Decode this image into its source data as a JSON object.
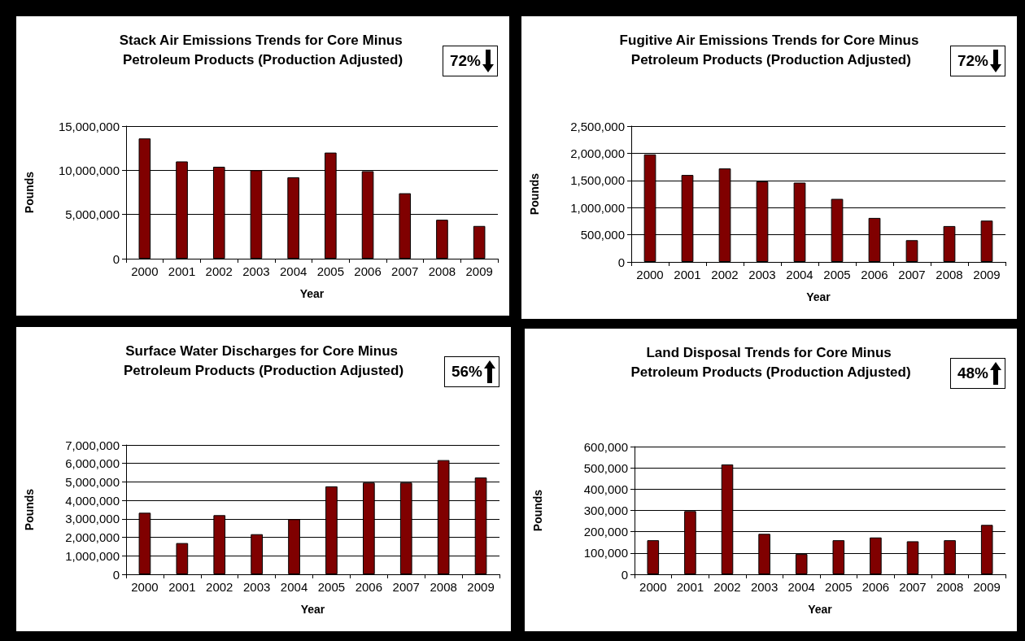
{
  "chart_data": [
    {
      "type": "bar",
      "title": "Stack Air Emissions Trends for Core Minus Petroleum Products (Production Adjusted)",
      "xlabel": "Year",
      "ylabel": "Pounds",
      "annotations": [
        "72%"
      ],
      "categories": [
        "2000",
        "2001",
        "2002",
        "2003",
        "2004",
        "2005",
        "2006",
        "2007",
        "2008",
        "2009"
      ],
      "values": [
        13600000,
        11000000,
        10400000,
        10000000,
        9200000,
        12000000,
        9900000,
        7400000,
        4400000,
        3700000
      ],
      "color": "#800000",
      "ylim": [
        0,
        15000000
      ],
      "yticks": [
        {
          "value": 0,
          "label": "0"
        },
        {
          "value": 5000000,
          "label": "5,000,000"
        },
        {
          "value": 10000000,
          "label": "10,000,000"
        },
        {
          "value": 15000000,
          "label": "15,000,000"
        }
      ],
      "grid": "y"
    },
    {
      "type": "bar",
      "title": "Fugitive Air Emissions Trends for Core Minus Petroleum Products (Production Adjusted)",
      "xlabel": "Year",
      "ylabel": "Pounds",
      "annotations": [
        "72%"
      ],
      "categories": [
        "2000",
        "2001",
        "2002",
        "2003",
        "2004",
        "2005",
        "2006",
        "2007",
        "2008",
        "2009"
      ],
      "values": [
        1980000,
        1600000,
        1720000,
        1480000,
        1460000,
        1160000,
        810000,
        400000,
        660000,
        760000
      ],
      "color": "#800000",
      "ylim": [
        0,
        2500000
      ],
      "yticks": [
        {
          "value": 0,
          "label": "0"
        },
        {
          "value": 500000,
          "label": "500,000"
        },
        {
          "value": 1000000,
          "label": "1,000,000"
        },
        {
          "value": 1500000,
          "label": "1,500,000"
        },
        {
          "value": 2000000,
          "label": "2,000,000"
        },
        {
          "value": 2500000,
          "label": "2,500,000"
        }
      ],
      "grid": "y"
    },
    {
      "type": "bar",
      "title": "Surface Water Discharges for Core Minus Petroleum Products (Production Adjusted)",
      "xlabel": "Year",
      "ylabel": "Pounds",
      "annotations": [
        "56%"
      ],
      "categories": [
        "2000",
        "2001",
        "2002",
        "2003",
        "2004",
        "2005",
        "2006",
        "2007",
        "2008",
        "2009"
      ],
      "values": [
        3330000,
        1690000,
        3200000,
        2170000,
        2980000,
        4760000,
        4960000,
        4960000,
        6180000,
        5240000
      ],
      "color": "#800000",
      "ylim": [
        0,
        7000000
      ],
      "yticks": [
        {
          "value": 0,
          "label": "0"
        },
        {
          "value": 1000000,
          "label": "1,000,000"
        },
        {
          "value": 2000000,
          "label": "2,000,000"
        },
        {
          "value": 3000000,
          "label": "3,000,000"
        },
        {
          "value": 4000000,
          "label": "4,000,000"
        },
        {
          "value": 5000000,
          "label": "5,000,000"
        },
        {
          "value": 6000000,
          "label": "6,000,000"
        },
        {
          "value": 7000000,
          "label": "7,000,000"
        }
      ],
      "grid": "y"
    },
    {
      "type": "bar",
      "title": "Land Disposal Trends for Core Minus Petroleum Products (Production Adjusted)",
      "xlabel": "Year",
      "ylabel": "Pounds",
      "annotations": [
        "48%"
      ],
      "categories": [
        "2000",
        "2001",
        "2002",
        "2003",
        "2004",
        "2005",
        "2006",
        "2007",
        "2008",
        "2009"
      ],
      "values": [
        160000,
        297000,
        516000,
        190000,
        95000,
        160000,
        173000,
        155000,
        160000,
        232000
      ],
      "color": "#800000",
      "ylim": [
        0,
        600000
      ],
      "yticks": [
        {
          "value": 0,
          "label": "0"
        },
        {
          "value": 100000,
          "label": "100,000"
        },
        {
          "value": 200000,
          "label": "200,000"
        },
        {
          "value": 300000,
          "label": "300,000"
        },
        {
          "value": 400000,
          "label": "400,000"
        },
        {
          "value": 500000,
          "label": "500,000"
        },
        {
          "value": 600000,
          "label": "600,000"
        }
      ],
      "grid": "y"
    }
  ]
}
